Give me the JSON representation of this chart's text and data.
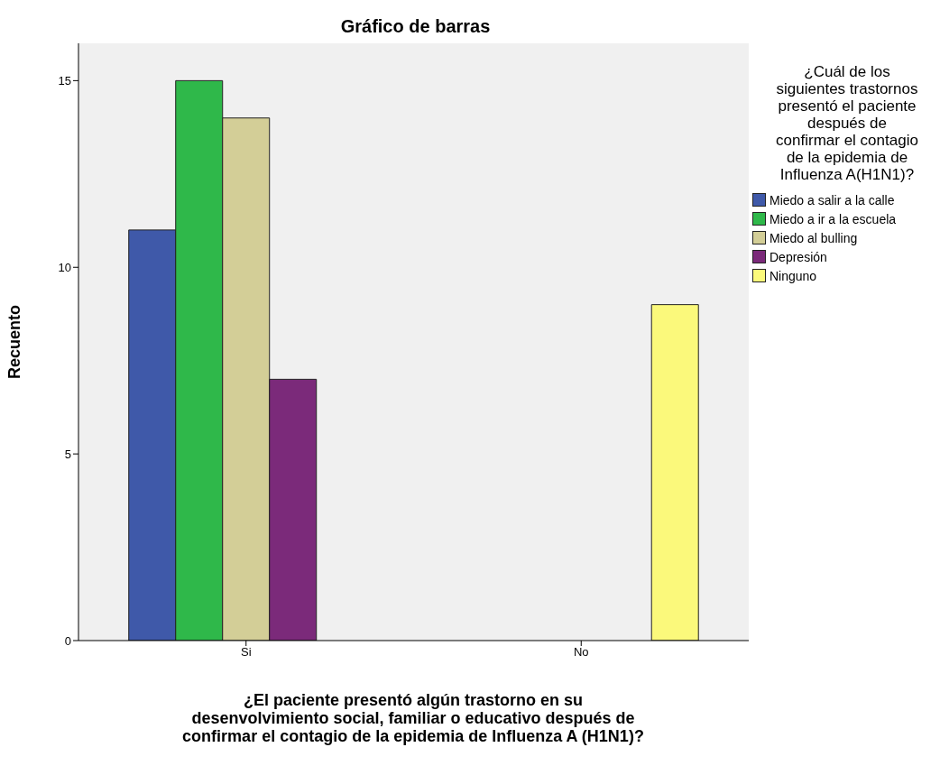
{
  "chart_data": {
    "type": "bar",
    "title": "Gráfico de barras",
    "xlabel": "¿El paciente presentó algún trastorno en su desenvolvimiento social, familiar o educativo después de confirmar el contagio de la epidemia de Influenza A (H1N1)?",
    "ylabel": "Recuento",
    "legend_title": "¿Cuál de los siguientes trastornos presentó el paciente después de confirmar el contagio de la epidemia de Influenza A(H1N1)?",
    "categories": [
      "Si",
      "No"
    ],
    "series": [
      {
        "name": "Miedo a salir a la calle",
        "color": "#3f59a9",
        "values": [
          11,
          null
        ]
      },
      {
        "name": "Miedo a ir a la escuela",
        "color": "#2fb84a",
        "values": [
          15,
          null
        ]
      },
      {
        "name": "Miedo al bulling",
        "color": "#d3ce97",
        "values": [
          14,
          null
        ]
      },
      {
        "name": "Depresión",
        "color": "#7b2a7a",
        "values": [
          7,
          null
        ]
      },
      {
        "name": "Ninguno",
        "color": "#fbf97b",
        "values": [
          null,
          9
        ]
      }
    ],
    "ylim": [
      0,
      16
    ],
    "yticks": [
      0,
      5,
      10,
      15
    ],
    "grid": false,
    "legend": "right"
  }
}
